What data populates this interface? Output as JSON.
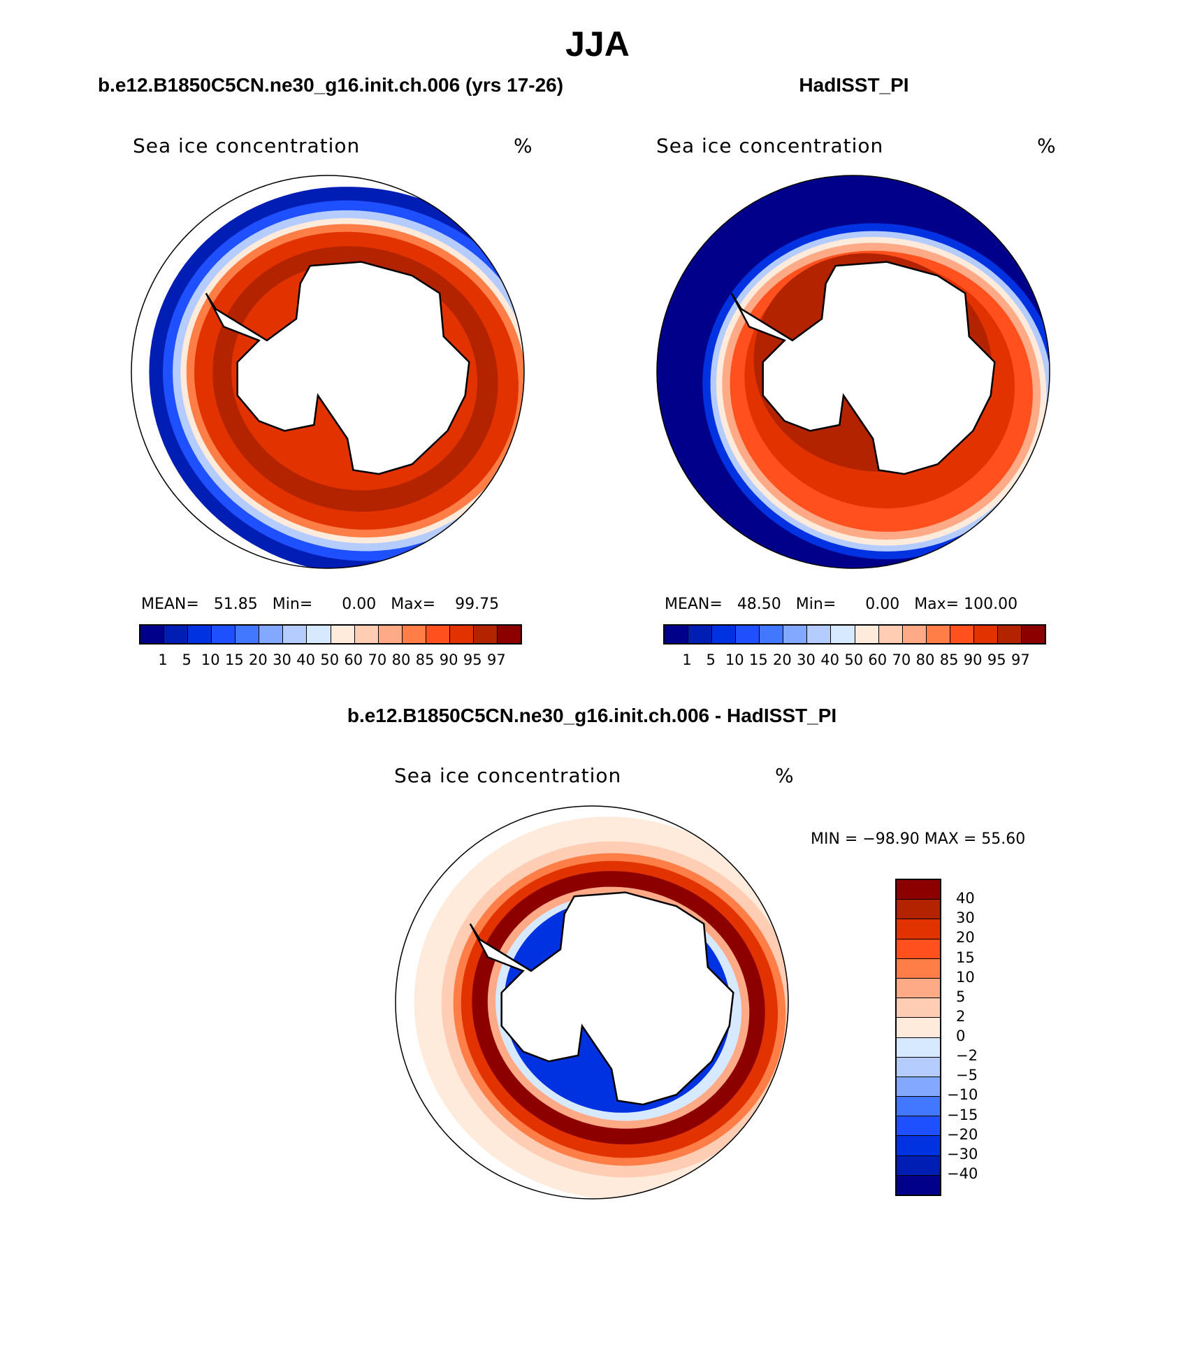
{
  "title": "JJA",
  "panels": [
    {
      "subtitle": "b.e12.B1850C5CN.ne30_g16.init.ch.006 (yrs 17-26)",
      "field_label": "Sea ice concentration",
      "units": "%",
      "stats": {
        "mean_label": "MEAN=",
        "mean": "51.85",
        "min_label": "Min=",
        "min": "0.00",
        "max_label": "Max=",
        "max": "99.75"
      }
    },
    {
      "subtitle": "HadISST_PI",
      "field_label": "Sea ice concentration",
      "units": "%",
      "stats": {
        "mean_label": "MEAN=",
        "mean": "48.50",
        "min_label": "Min=",
        "min": "0.00",
        "max_label": "Max=",
        "max": "100.00"
      }
    },
    {
      "subtitle": "b.e12.B1850C5CN.ne30_g16.init.ch.006 - HadISST_PI",
      "field_label": "Sea ice concentration",
      "units": "%",
      "minmax": "MIN = −98.90 MAX =   55.60"
    }
  ],
  "colorbar_abs": {
    "levels": [
      "1",
      "5",
      "10",
      "15",
      "20",
      "30",
      "40",
      "50",
      "60",
      "70",
      "80",
      "85",
      "90",
      "95",
      "97"
    ],
    "colors": [
      "#00008b",
      "#001eb4",
      "#0032e1",
      "#1e50ff",
      "#4178ff",
      "#82a8ff",
      "#b4ccff",
      "#d7e9ff",
      "#ffebdc",
      "#ffcdb4",
      "#ffaa87",
      "#ff7d46",
      "#ff501e",
      "#e13200",
      "#b42300",
      "#8c0000"
    ]
  },
  "colorbar_diff": {
    "levels": [
      "40",
      "30",
      "20",
      "15",
      "10",
      "5",
      "2",
      "0",
      "−2",
      "−5",
      "−10",
      "−15",
      "−20",
      "−30",
      "−40"
    ],
    "colors": [
      "#8c0000",
      "#b42300",
      "#e13200",
      "#ff501e",
      "#ff7d46",
      "#ffaa87",
      "#ffcdb4",
      "#ffebdc",
      "#d7e9ff",
      "#b4ccff",
      "#82a8ff",
      "#4178ff",
      "#1e50ff",
      "#0032e1",
      "#001eb4",
      "#00008b"
    ]
  }
}
